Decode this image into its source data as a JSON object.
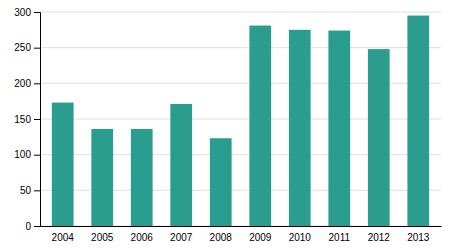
{
  "chart_data": {
    "type": "bar",
    "categories": [
      "2004",
      "2005",
      "2006",
      "2007",
      "2008",
      "2009",
      "2010",
      "2011",
      "2012",
      "2013"
    ],
    "values": [
      173,
      136,
      136,
      171,
      123,
      281,
      275,
      274,
      248,
      295
    ],
    "color": "#2a9d8f",
    "ylim": [
      0,
      300
    ],
    "yticks": [
      0,
      50,
      100,
      150,
      200,
      250,
      300
    ],
    "grid": true
  }
}
